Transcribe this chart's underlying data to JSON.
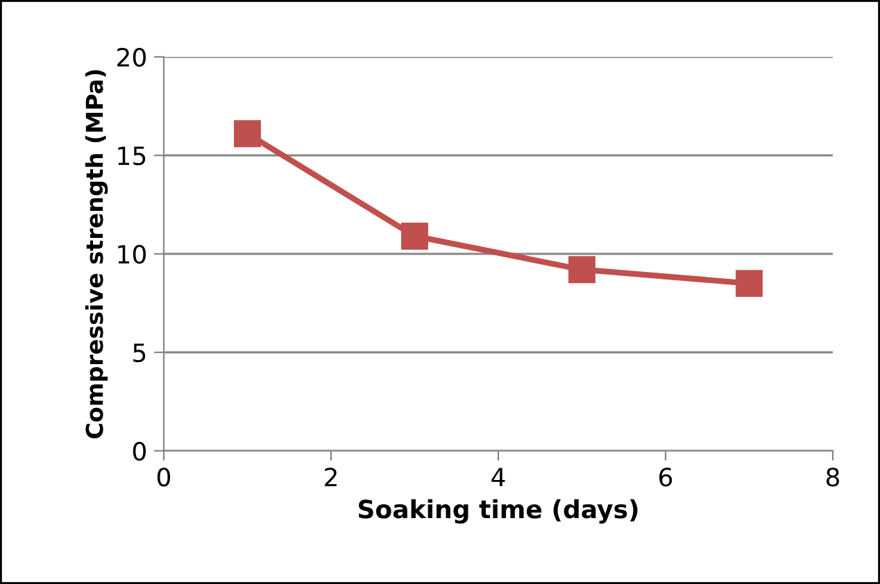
{
  "chart_data": {
    "type": "line",
    "xlabel": "Soaking time (days)",
    "ylabel": "Compressive strength (MPa)",
    "x": [
      1,
      3,
      5,
      7
    ],
    "series": [
      {
        "color": "#c0504d",
        "values": [
          16.1,
          10.9,
          9.2,
          8.5
        ]
      }
    ],
    "xlim": [
      0,
      8
    ],
    "xticks": [
      0,
      2,
      4,
      6,
      8
    ],
    "ylim": [
      0,
      20
    ],
    "yticks": [
      0,
      5,
      10,
      15,
      20
    ],
    "grid": "y",
    "marker": "square",
    "line_style": "solid",
    "legend": false
  }
}
